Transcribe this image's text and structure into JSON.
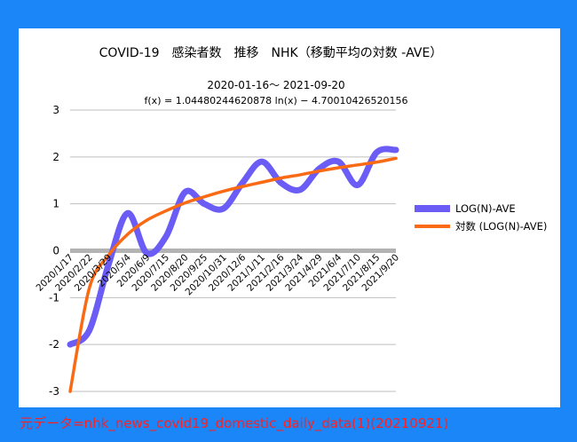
{
  "source_note": "元データ=nhk_news_covid19_domestic_daily_data(1)(20210921)",
  "colors": {
    "background": "#1a86f7",
    "series1": "#6a5cf5",
    "series2": "#fa6a14",
    "zero_line": "#b3b3b3",
    "grid": "#bfbfbf",
    "source_text": "#ff2020"
  },
  "chart_data": {
    "type": "line",
    "title": "COVID-19　感染者数　推移　NHK（移動平均の対数 -AVE）",
    "subtitle": "2020-01-16～ 2021-09-20",
    "formula": "f(x) = 1.04480244620878 ln(x) − 4.70010426520156",
    "ylim": [
      -3,
      3
    ],
    "yticks": [
      "3",
      "2",
      "1",
      "0",
      "-1",
      "-2",
      "-3"
    ],
    "grid": "horizontal",
    "legend_position": "right",
    "categories": [
      "2020/1/17",
      "2020/2/22",
      "2020/3/29",
      "2020/5/4",
      "2020/6/9",
      "2020/7/15",
      "2020/8/20",
      "2020/9/25",
      "2020/10/31",
      "2020/12/6",
      "2021/1/11",
      "2021/2/16",
      "2021/3/24",
      "2021/4/29",
      "2021/6/4",
      "2021/7/10",
      "2021/8/15",
      "2021/9/20"
    ],
    "series": [
      {
        "name": "LOG(N)-AVE",
        "values": [
          -2.0,
          -1.7,
          -0.3,
          0.8,
          -0.05,
          0.3,
          1.25,
          1.0,
          0.9,
          1.45,
          1.9,
          1.45,
          1.3,
          1.75,
          1.9,
          1.4,
          2.1,
          2.15
        ]
      },
      {
        "name": "対数  (LOG(N)-AVE)",
        "values": [
          -3.0,
          -0.8,
          -0.1,
          0.35,
          0.65,
          0.85,
          1.02,
          1.15,
          1.27,
          1.37,
          1.46,
          1.55,
          1.62,
          1.7,
          1.77,
          1.83,
          1.89,
          1.97
        ]
      }
    ]
  }
}
